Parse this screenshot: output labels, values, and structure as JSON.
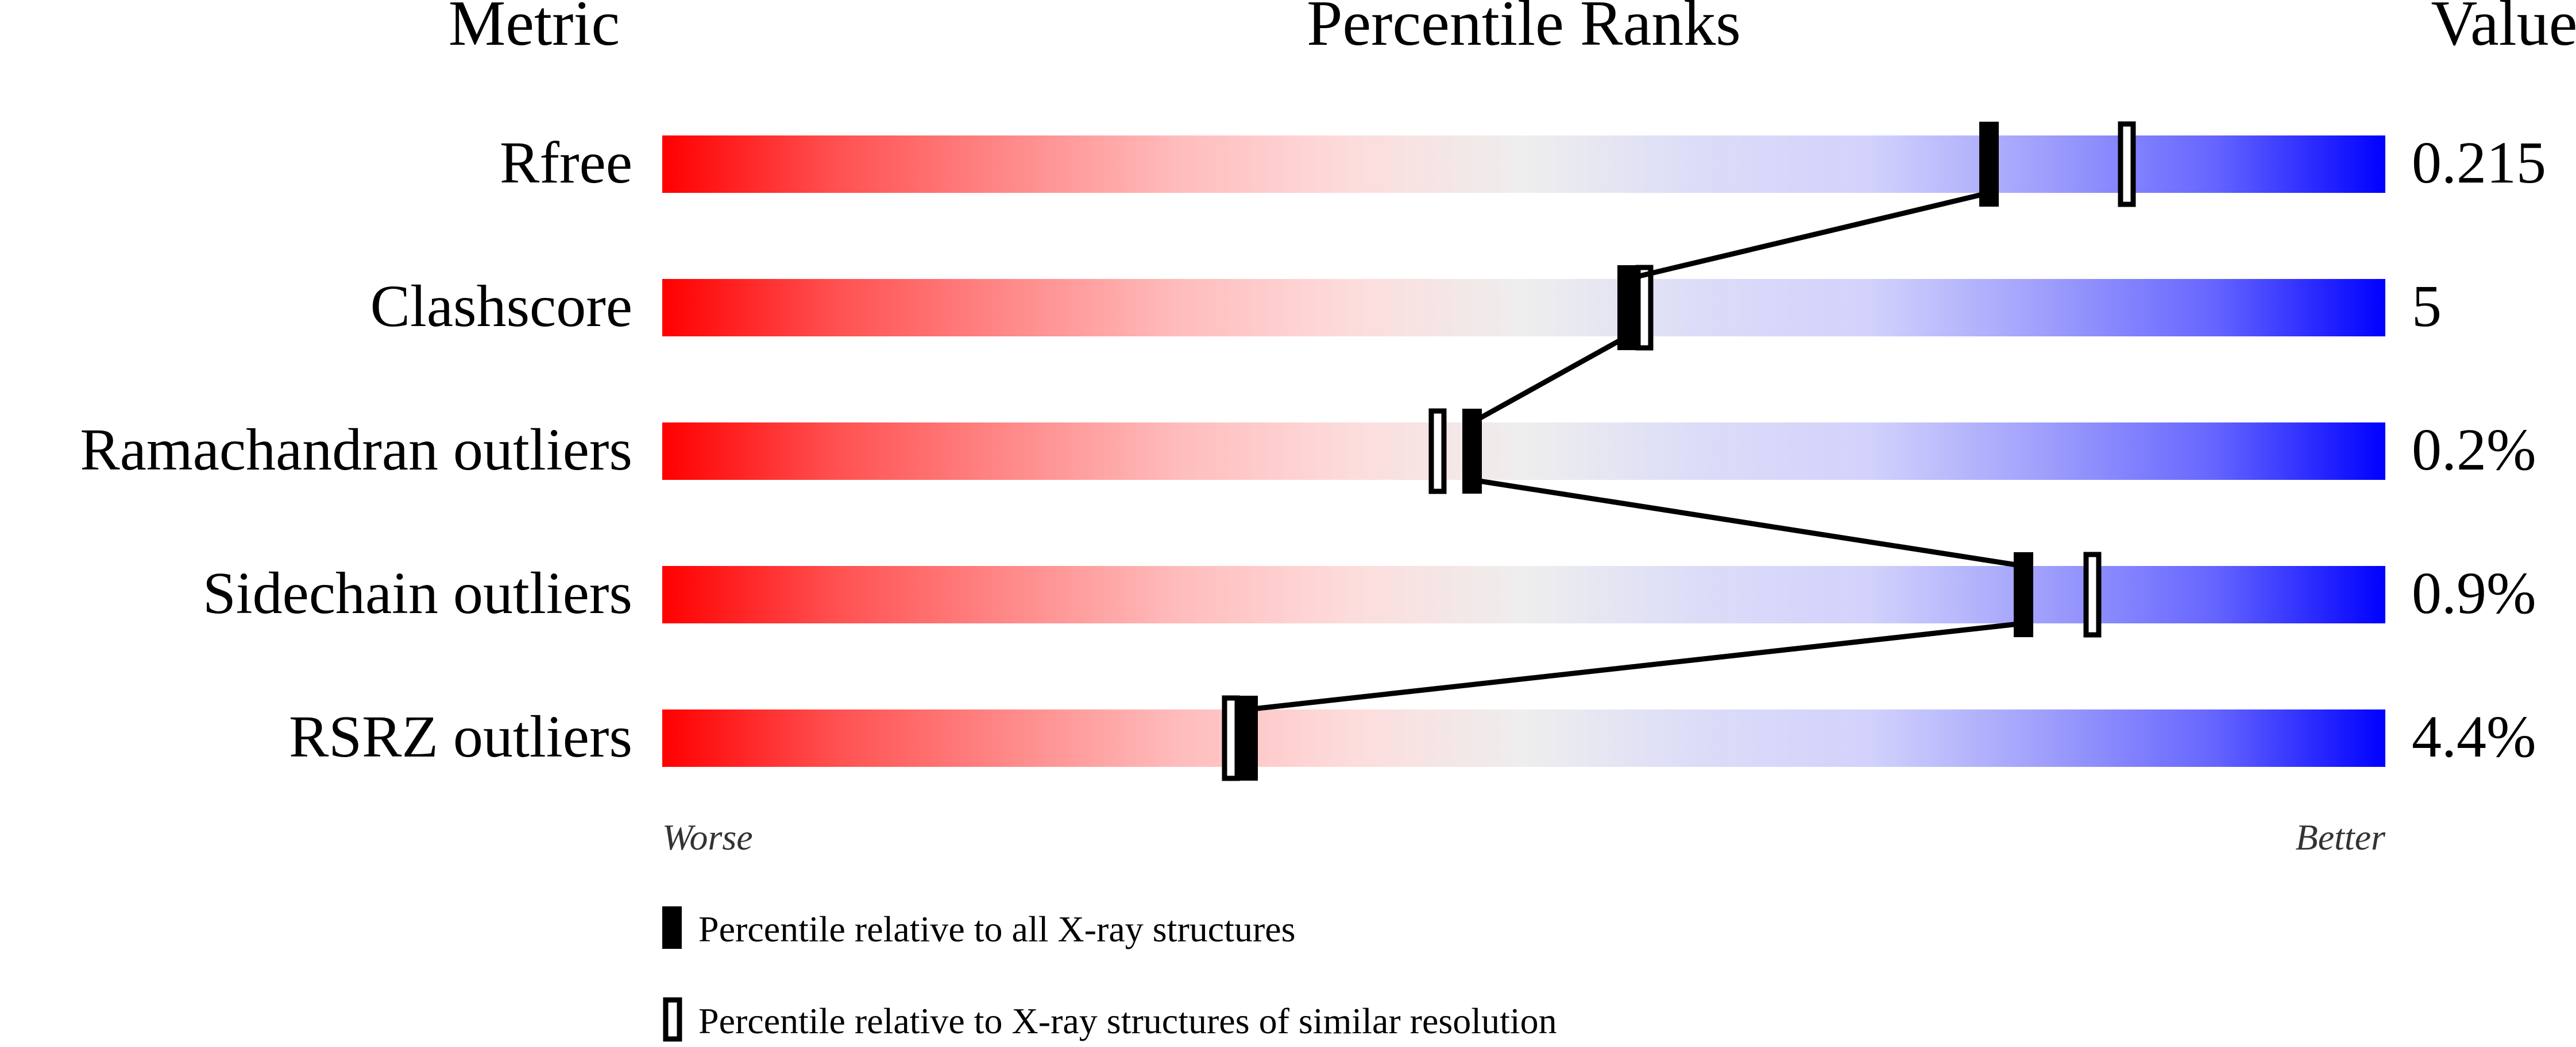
{
  "chart_data": {
    "type": "percentile-bar",
    "headers": {
      "metric": "Metric",
      "ranks": "Percentile Ranks",
      "value": "Value"
    },
    "xlim": [
      0,
      100
    ],
    "axis_labels": {
      "left": "Worse",
      "right": "Better"
    },
    "gradient_colors": [
      "#ff0000",
      "#eeeeee",
      "#0000ff"
    ],
    "metrics": [
      {
        "name": "Rfree",
        "value": "0.215",
        "percentile_all": 77,
        "percentile_similar": 85
      },
      {
        "name": "Clashscore",
        "value": "5",
        "percentile_all": 56,
        "percentile_similar": 57
      },
      {
        "name": "Ramachandran outliers",
        "value": "0.2%",
        "percentile_all": 47,
        "percentile_similar": 45
      },
      {
        "name": "Sidechain outliers",
        "value": "0.9%",
        "percentile_all": 79,
        "percentile_similar": 83
      },
      {
        "name": "RSRZ outliers",
        "value": "4.4%",
        "percentile_all": 34,
        "percentile_similar": 33
      }
    ],
    "legend": [
      {
        "marker": "filled",
        "label": "Percentile relative to all X-ray structures"
      },
      {
        "marker": "open",
        "label": "Percentile relative to X-ray structures of similar resolution"
      }
    ]
  }
}
